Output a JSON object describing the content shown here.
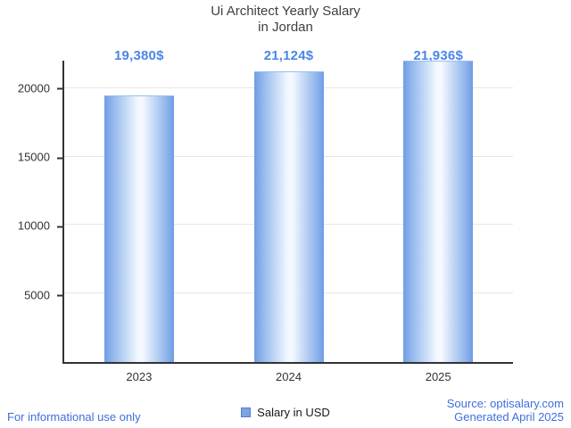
{
  "title_lines": [
    "Ui Architect Yearly Salary",
    "in Jordan"
  ],
  "chart_data": {
    "type": "bar",
    "title": "Ui Architect Yearly Salary in Jordan",
    "categories": [
      "2023",
      "2024",
      "2025"
    ],
    "values": [
      19380,
      21124,
      21936
    ],
    "value_labels": [
      "19,380$",
      "21,124$",
      "21,936$"
    ],
    "ylim": [
      0,
      22000
    ],
    "yticks": [
      5000,
      10000,
      15000,
      20000
    ],
    "xlabel": "",
    "ylabel": "",
    "grid": true,
    "legend": "Salary in USD",
    "legend_position": "bottom"
  },
  "footer": {
    "left": "For informational use only",
    "source": "Source: optisalary.com",
    "generated": "Generated April 2025"
  },
  "colors": {
    "accent": "#4a86e8",
    "footer_text": "#3f6fdc",
    "legend_swatch": "#7aa3e8",
    "bar_edge": "#6f9ce4",
    "bar_center": "#f6faff",
    "axis": "#333333",
    "gridline": "#e6e6e6",
    "title_text": "#404040"
  }
}
